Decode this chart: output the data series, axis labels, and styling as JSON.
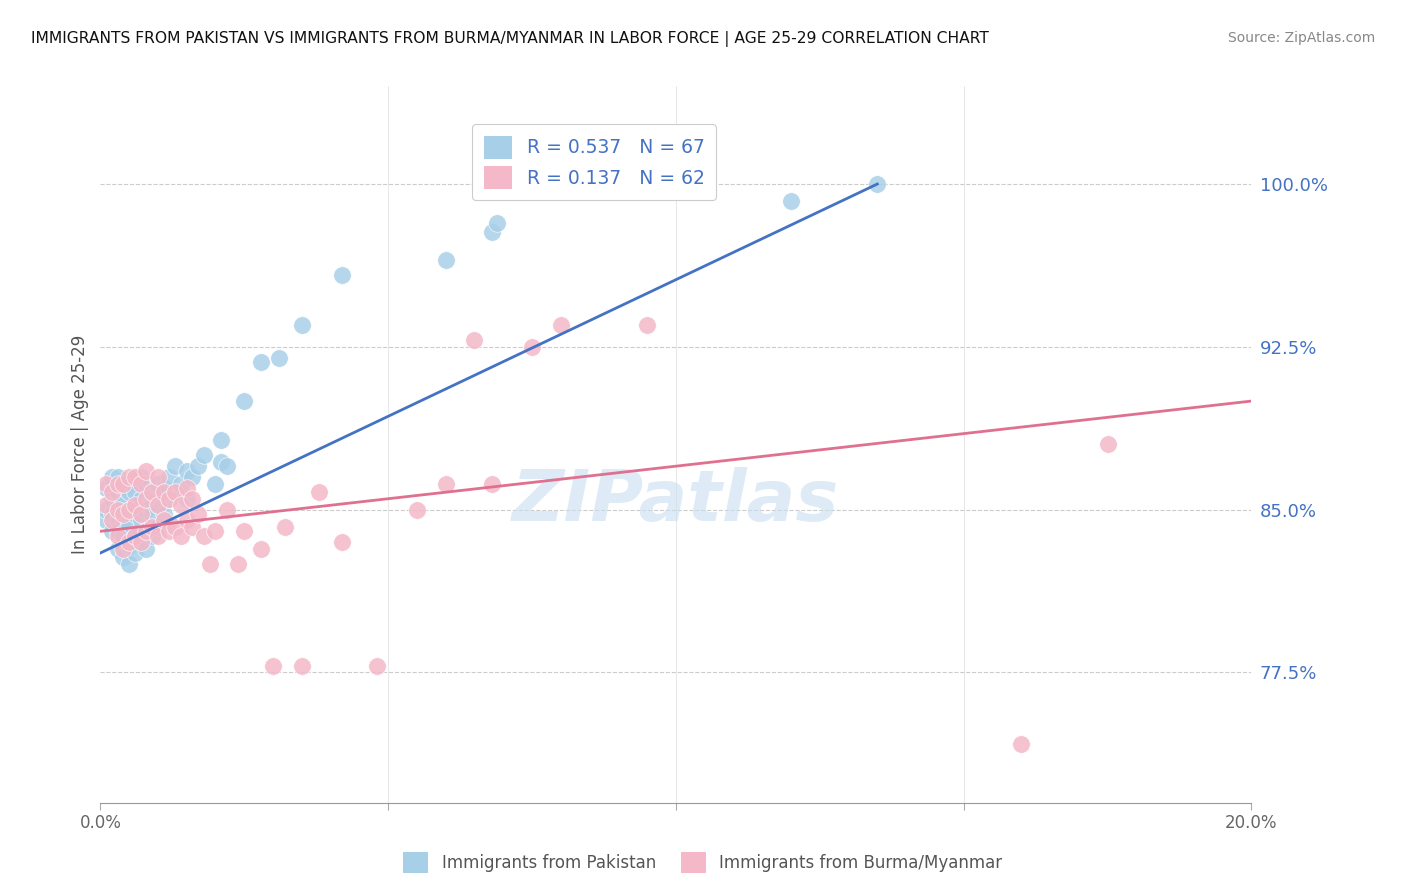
{
  "title": "IMMIGRANTS FROM PAKISTAN VS IMMIGRANTS FROM BURMA/MYANMAR IN LABOR FORCE | AGE 25-29 CORRELATION CHART",
  "source": "Source: ZipAtlas.com",
  "ylabel": "In Labor Force | Age 25-29",
  "yticks": [
    0.775,
    0.85,
    0.925,
    1.0
  ],
  "ytick_labels": [
    "77.5%",
    "85.0%",
    "92.5%",
    "100.0%"
  ],
  "xlim": [
    0.0,
    0.2
  ],
  "ylim": [
    0.715,
    1.045
  ],
  "pakistan_color": "#a8cfe8",
  "burma_color": "#f4b8c8",
  "pakistan_line_color": "#4472c4",
  "burma_line_color": "#e07090",
  "R_pakistan": 0.537,
  "N_pakistan": 67,
  "R_burma": 0.137,
  "N_burma": 62,
  "watermark_text": "ZIPatlas",
  "pakistan_x": [
    0.001,
    0.001,
    0.001,
    0.002,
    0.002,
    0.002,
    0.002,
    0.003,
    0.003,
    0.003,
    0.003,
    0.003,
    0.003,
    0.004,
    0.004,
    0.004,
    0.004,
    0.004,
    0.005,
    0.005,
    0.005,
    0.005,
    0.005,
    0.006,
    0.006,
    0.006,
    0.006,
    0.007,
    0.007,
    0.007,
    0.007,
    0.008,
    0.008,
    0.008,
    0.008,
    0.009,
    0.009,
    0.009,
    0.01,
    0.01,
    0.01,
    0.011,
    0.011,
    0.012,
    0.012,
    0.013,
    0.013,
    0.014,
    0.015,
    0.015,
    0.016,
    0.017,
    0.018,
    0.02,
    0.021,
    0.021,
    0.022,
    0.025,
    0.028,
    0.031,
    0.035,
    0.042,
    0.06,
    0.068,
    0.069,
    0.12,
    0.135
  ],
  "pakistan_y": [
    0.845,
    0.85,
    0.86,
    0.84,
    0.848,
    0.855,
    0.865,
    0.832,
    0.84,
    0.845,
    0.852,
    0.858,
    0.865,
    0.828,
    0.838,
    0.845,
    0.853,
    0.86,
    0.825,
    0.833,
    0.842,
    0.85,
    0.858,
    0.83,
    0.838,
    0.848,
    0.858,
    0.835,
    0.845,
    0.855,
    0.865,
    0.832,
    0.84,
    0.85,
    0.862,
    0.838,
    0.848,
    0.858,
    0.842,
    0.852,
    0.862,
    0.848,
    0.86,
    0.855,
    0.865,
    0.858,
    0.87,
    0.862,
    0.855,
    0.868,
    0.865,
    0.87,
    0.875,
    0.862,
    0.872,
    0.882,
    0.87,
    0.9,
    0.918,
    0.92,
    0.935,
    0.958,
    0.965,
    0.978,
    0.982,
    0.992,
    1.0
  ],
  "burma_x": [
    0.001,
    0.001,
    0.002,
    0.002,
    0.003,
    0.003,
    0.003,
    0.004,
    0.004,
    0.004,
    0.005,
    0.005,
    0.005,
    0.006,
    0.006,
    0.006,
    0.007,
    0.007,
    0.007,
    0.008,
    0.008,
    0.008,
    0.009,
    0.009,
    0.01,
    0.01,
    0.01,
    0.011,
    0.011,
    0.012,
    0.012,
    0.013,
    0.013,
    0.014,
    0.014,
    0.015,
    0.015,
    0.016,
    0.016,
    0.017,
    0.018,
    0.019,
    0.02,
    0.022,
    0.024,
    0.025,
    0.028,
    0.03,
    0.032,
    0.035,
    0.038,
    0.042,
    0.048,
    0.055,
    0.06,
    0.065,
    0.068,
    0.075,
    0.08,
    0.095,
    0.16,
    0.175
  ],
  "burma_y": [
    0.852,
    0.862,
    0.845,
    0.858,
    0.838,
    0.85,
    0.862,
    0.832,
    0.848,
    0.862,
    0.835,
    0.85,
    0.865,
    0.838,
    0.852,
    0.865,
    0.835,
    0.848,
    0.862,
    0.84,
    0.855,
    0.868,
    0.842,
    0.858,
    0.838,
    0.852,
    0.865,
    0.845,
    0.858,
    0.84,
    0.855,
    0.842,
    0.858,
    0.838,
    0.852,
    0.845,
    0.86,
    0.842,
    0.855,
    0.848,
    0.838,
    0.825,
    0.84,
    0.85,
    0.825,
    0.84,
    0.832,
    0.778,
    0.842,
    0.778,
    0.858,
    0.835,
    0.778,
    0.85,
    0.862,
    0.928,
    0.862,
    0.925,
    0.935,
    0.935,
    0.742,
    0.88
  ],
  "pak_line_x0": 0.0,
  "pak_line_y0": 0.83,
  "pak_line_x1": 0.135,
  "pak_line_y1": 1.0,
  "bur_line_x0": 0.0,
  "bur_line_y0": 0.84,
  "bur_line_x1": 0.2,
  "bur_line_y1": 0.9
}
